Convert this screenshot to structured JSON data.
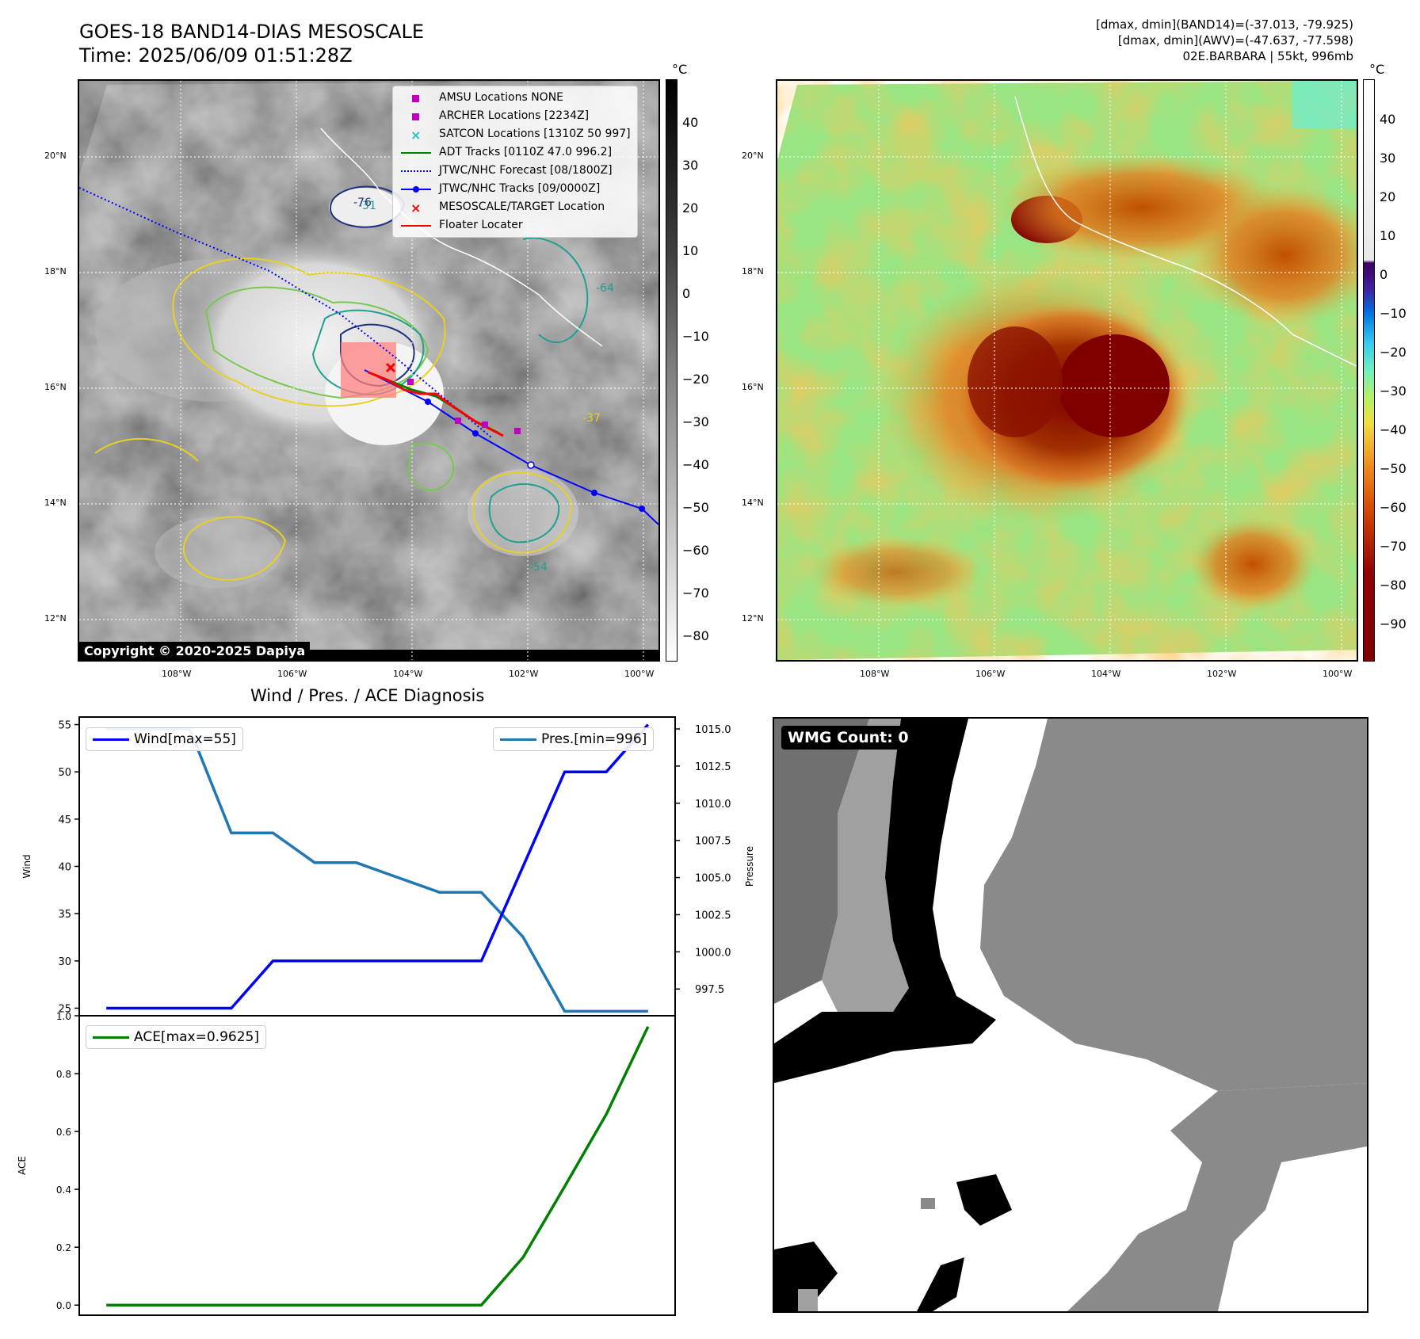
{
  "header": {
    "title_line1": "GOES-18 BAND14-DIAS MESOSCALE",
    "title_line2": "Time: 2025/06/09 01:51:28Z",
    "info_line1": "[dmax, dmin](BAND14)=(-37.013, -79.925)",
    "info_line2": "[dmax, dmin](AWV)=(-47.637, -77.598)",
    "info_line3": "02E.BARBARA | 55kt, 996mb"
  },
  "map": {
    "lat_labels": [
      "20°N",
      "18°N",
      "16°N",
      "14°N",
      "12°N"
    ],
    "lon_labels": [
      "108°W",
      "106°W",
      "104°W",
      "102°W",
      "100°W"
    ],
    "contour_labels": [
      "-31",
      "-37",
      "-54",
      "-64",
      "-76"
    ],
    "copyright": "Copyright © 2020-2025 Dapiya",
    "legend": [
      {
        "label": "AMSU Locations NONE",
        "kind": "square",
        "color": "#c000c0"
      },
      {
        "label": "ARCHER Locations [2234Z]",
        "kind": "square",
        "color": "#c000c0"
      },
      {
        "label": "SATCON Locations [1310Z 50 997]",
        "kind": "x",
        "color": "#20c0c0"
      },
      {
        "label": "ADT Tracks [0110Z 47.0 996.2]",
        "kind": "line",
        "color": "#008000"
      },
      {
        "label": "JTWC/NHC Forecast [08/1800Z]",
        "kind": "dotted",
        "color": "#0000ff"
      },
      {
        "label": "JTWC/NHC Tracks [09/0000Z]",
        "kind": "line-dot",
        "color": "#0000ff"
      },
      {
        "label": "MESOSCALE/TARGET Location",
        "kind": "x",
        "color": "#ff0000"
      },
      {
        "label": "Floater Locater",
        "kind": "line",
        "color": "#ff0000"
      }
    ]
  },
  "colorbars": {
    "unit": "°C",
    "left_ticks": [
      "40",
      "30",
      "20",
      "10",
      "0",
      "−10",
      "−20",
      "−30",
      "−40",
      "−50",
      "−60",
      "−70",
      "−80"
    ],
    "right_ticks": [
      "40",
      "30",
      "20",
      "10",
      "0",
      "−10",
      "−20",
      "−30",
      "−40",
      "−50",
      "−60",
      "−70",
      "−80",
      "−90"
    ]
  },
  "wmg": {
    "label": "WMG Count: 0"
  },
  "colors": {
    "wind": "#0000ff",
    "pressure": "#1f77b4",
    "ace": "#008000",
    "track": "#0000ff",
    "floater": "#ff0000"
  },
  "chart_data": [
    {
      "type": "line",
      "title": "Wind / Pres. / ACE Diagnosis",
      "ylabel": "Wind",
      "y2label": "Pressure",
      "x": [
        0,
        1,
        2,
        3,
        4,
        5,
        6,
        7,
        8,
        9,
        10,
        11,
        12,
        13
      ],
      "ylim": [
        24.2,
        55.8
      ],
      "y2lim": [
        995.7,
        1015.8
      ],
      "yticks": [
        "25",
        "30",
        "35",
        "40",
        "45",
        "50",
        "55"
      ],
      "y2ticks": [
        "997.5",
        "1000.0",
        "1002.5",
        "1005.0",
        "1007.5",
        "1010.0",
        "1012.5",
        "1015.0"
      ],
      "series": [
        {
          "name": "Wind[max=55]",
          "axis": "left",
          "values": [
            25,
            25,
            25,
            25,
            30,
            30,
            30,
            30,
            30,
            30,
            40,
            50,
            50,
            55
          ]
        },
        {
          "name": "Pres.[min=996]",
          "axis": "right",
          "values": [
            1015,
            1015,
            1015,
            1008,
            1008,
            1006,
            1006,
            1005,
            1004,
            1004,
            1001,
            996,
            996,
            996
          ]
        }
      ]
    },
    {
      "type": "line",
      "ylabel": "ACE",
      "x": [
        0,
        1,
        2,
        3,
        4,
        5,
        6,
        7,
        8,
        9,
        10,
        11,
        12,
        13
      ],
      "ylim": [
        -0.035,
        1.0
      ],
      "yticks": [
        "0.0",
        "0.2",
        "0.4",
        "0.6",
        "0.8",
        "1.0"
      ],
      "series": [
        {
          "name": "ACE[max=0.9625]",
          "values": [
            0,
            0,
            0,
            0,
            0,
            0,
            0,
            0,
            0,
            0,
            0.165,
            0.41,
            0.66,
            0.9625
          ]
        }
      ]
    }
  ]
}
